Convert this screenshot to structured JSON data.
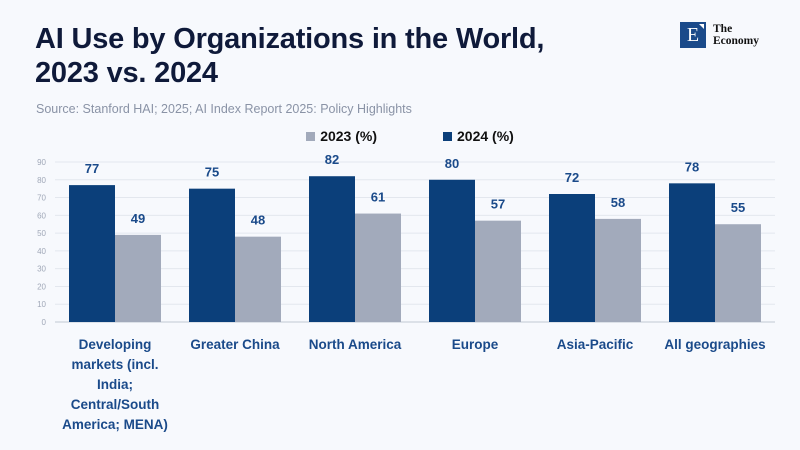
{
  "header": {
    "title_line1": "AI Use by Organizations in the World,",
    "title_line2": "2023 vs. 2024",
    "source": "Source: Stanford HAI; 2025; AI Index Report 2025: Policy Highlights"
  },
  "logo": {
    "letter": "E",
    "line1": "The",
    "line2": "Economy",
    "color": "#1a4a8a"
  },
  "chart_data": {
    "type": "bar",
    "title": "AI Use by Organizations in the World, 2023 vs. 2024",
    "xlabel": "",
    "ylabel": "",
    "ylim": [
      0,
      90
    ],
    "yticks": [
      0,
      10,
      20,
      30,
      40,
      50,
      60,
      70,
      80,
      90
    ],
    "grid": true,
    "legend_position": "top-center",
    "categories": [
      "Developing markets (incl. India; Central/South America; MENA)",
      "Greater China",
      "North America",
      "Europe",
      "Asia-Pacific",
      "All geographies"
    ],
    "category_lines": [
      [
        "Developing",
        "markets (incl.",
        "India;",
        "Central/South",
        "America; MENA)"
      ],
      [
        "Greater China"
      ],
      [
        "North America"
      ],
      [
        "Europe"
      ],
      [
        "Asia-Pacific"
      ],
      [
        "All geographies"
      ]
    ],
    "legend_order": [
      "2023 (%)",
      "2024 (%)"
    ],
    "series": [
      {
        "name": "2024 (%)",
        "color": "#0b3f7a",
        "values": [
          77,
          75,
          82,
          80,
          72,
          78
        ]
      },
      {
        "name": "2023 (%)",
        "color": "#a2aabb",
        "values": [
          49,
          48,
          61,
          57,
          58,
          55
        ]
      }
    ]
  }
}
